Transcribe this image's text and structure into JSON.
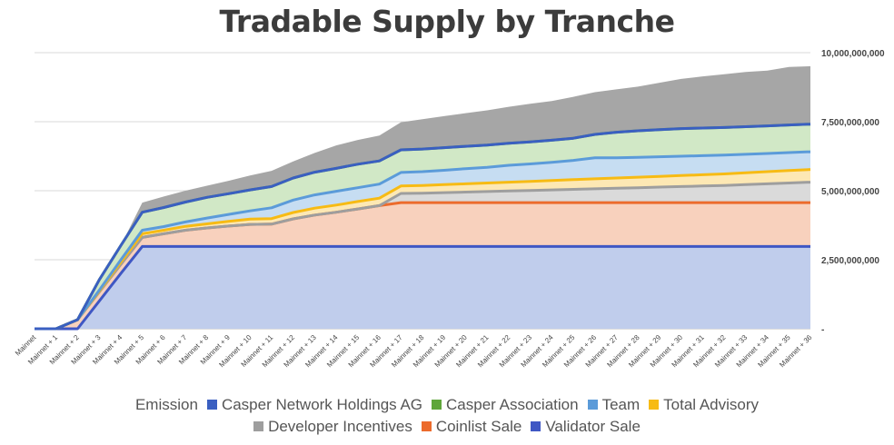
{
  "chart_data": {
    "type": "area",
    "stacked": true,
    "title": "Tradable Supply by Tranche",
    "xlabel": "",
    "ylabel": "",
    "ylim": [
      0,
      10000000000
    ],
    "y_ticks": [
      "-",
      "2,500,000,000",
      "5,000,000,000",
      "7,500,000,000",
      "10,000,000,000"
    ],
    "y_axis_position": "right",
    "grid": true,
    "legend_position": "bottom",
    "legend_title": "Emission",
    "categories": [
      "Mainnet",
      "Mainnet + 1",
      "Mainnet + 2",
      "Mainnet + 3",
      "Mainnet + 4",
      "Mainnet + 5",
      "Mainnet + 6",
      "Mainnet + 7",
      "Mainnet + 8",
      "Mainnet + 9",
      "Mainnet + 10",
      "Mainnet + 11",
      "Mainnet + 12",
      "Mainnet + 13",
      "Mainnet + 14",
      "Mainnet + 15",
      "Mainnet + 16",
      "Mainnet + 17",
      "Mainnet + 18",
      "Mainnet + 19",
      "Mainnet + 20",
      "Mainnet + 21",
      "Mainnet + 22",
      "Mainnet + 23",
      "Mainnet + 24",
      "Mainnet + 25",
      "Mainnet + 26",
      "Mainnet + 27",
      "Mainnet + 28",
      "Mainnet + 29",
      "Mainnet + 30",
      "Mainnet + 31",
      "Mainnet + 32",
      "Mainnet + 33",
      "Mainnet + 34",
      "Mainnet + 35",
      "Mainnet + 36"
    ],
    "series": [
      {
        "name": "Validator Sale",
        "color": "#3f57c4",
        "fill": "#c0cdec",
        "values": [
          0,
          0,
          0,
          1000000000,
          2000000000,
          2980000000,
          2980000000,
          2980000000,
          2980000000,
          2980000000,
          2980000000,
          2980000000,
          2980000000,
          2980000000,
          2980000000,
          2980000000,
          2980000000,
          2980000000,
          2980000000,
          2980000000,
          2980000000,
          2980000000,
          2980000000,
          2980000000,
          2980000000,
          2980000000,
          2980000000,
          2980000000,
          2980000000,
          2980000000,
          2980000000,
          2980000000,
          2980000000,
          2980000000,
          2980000000,
          2980000000,
          2980000000
        ]
      },
      {
        "name": "Coinlist Sale",
        "color": "#ec6b2c",
        "fill": "#f8d1bd",
        "values": [
          0,
          0,
          330000000,
          330000000,
          330000000,
          330000000,
          460000000,
          590000000,
          670000000,
          740000000,
          800000000,
          810000000,
          1000000000,
          1140000000,
          1240000000,
          1360000000,
          1480000000,
          1590000000,
          1590000000,
          1590000000,
          1590000000,
          1590000000,
          1590000000,
          1590000000,
          1590000000,
          1590000000,
          1590000000,
          1590000000,
          1590000000,
          1590000000,
          1590000000,
          1590000000,
          1590000000,
          1590000000,
          1590000000,
          1590000000,
          1590000000
        ]
      },
      {
        "name": "Developer Incentives",
        "color": "#9e9e9e",
        "fill": "#dadada",
        "values": [
          0,
          0,
          0,
          0,
          0,
          0,
          0,
          0,
          0,
          0,
          0,
          0,
          0,
          0,
          0,
          0,
          0,
          330000000,
          340000000,
          360000000,
          380000000,
          400000000,
          420000000,
          440000000,
          460000000,
          480000000,
          500000000,
          520000000,
          540000000,
          560000000,
          580000000,
          600000000,
          620000000,
          650000000,
          680000000,
          710000000,
          740000000
        ]
      },
      {
        "name": "Total Advisory",
        "color": "#f7bb14",
        "fill": "#fde8b4",
        "values": [
          0,
          0,
          0,
          30000000,
          80000000,
          130000000,
          130000000,
          140000000,
          150000000,
          170000000,
          190000000,
          200000000,
          230000000,
          250000000,
          260000000,
          270000000,
          270000000,
          270000000,
          280000000,
          290000000,
          300000000,
          310000000,
          320000000,
          330000000,
          340000000,
          350000000,
          360000000,
          370000000,
          380000000,
          390000000,
          400000000,
          410000000,
          420000000,
          430000000,
          440000000,
          450000000,
          460000000
        ]
      },
      {
        "name": "Team",
        "color": "#5b9bd9",
        "fill": "#c6ddf2",
        "values": [
          0,
          0,
          0,
          30000000,
          80000000,
          130000000,
          130000000,
          160000000,
          210000000,
          250000000,
          300000000,
          390000000,
          450000000,
          480000000,
          500000000,
          500000000,
          510000000,
          490000000,
          500000000,
          520000000,
          550000000,
          570000000,
          610000000,
          630000000,
          660000000,
          700000000,
          760000000,
          730000000,
          720000000,
          710000000,
          700000000,
          690000000,
          680000000,
          670000000,
          660000000,
          650000000,
          640000000
        ]
      },
      {
        "name": "Casper Association",
        "color": "#5fa63a",
        "fill": "#d1e8c6",
        "values": [
          0,
          0,
          0,
          380000000,
          520000000,
          650000000,
          690000000,
          720000000,
          750000000,
          750000000,
          760000000,
          770000000,
          800000000,
          820000000,
          830000000,
          850000000,
          840000000,
          820000000,
          820000000,
          820000000,
          810000000,
          800000000,
          800000000,
          800000000,
          800000000,
          800000000,
          850000000,
          930000000,
          960000000,
          980000000,
          1000000000,
          1000000000,
          1000000000,
          1000000000,
          1000000000,
          1000000000,
          1000000000
        ]
      },
      {
        "name": "Casper Network Holdings AG",
        "color": "#3a5fc1",
        "fill": "#3a5fc1",
        "values": [
          0,
          0,
          0,
          0,
          0,
          0,
          0,
          0,
          0,
          0,
          0,
          0,
          0,
          0,
          0,
          0,
          0,
          0,
          0,
          0,
          0,
          0,
          0,
          0,
          0,
          0,
          0,
          0,
          0,
          0,
          0,
          0,
          0,
          0,
          0,
          0,
          0
        ]
      },
      {
        "name": "Emission",
        "color": "#a6a6a6",
        "fill": "#a6a6a6",
        "values": [
          0,
          0,
          0,
          0,
          0,
          350000000,
          400000000,
          410000000,
          420000000,
          470000000,
          520000000,
          570000000,
          600000000,
          700000000,
          830000000,
          880000000,
          920000000,
          1000000000,
          1080000000,
          1140000000,
          1200000000,
          1260000000,
          1320000000,
          1380000000,
          1420000000,
          1500000000,
          1530000000,
          1550000000,
          1600000000,
          1700000000,
          1800000000,
          1870000000,
          1930000000,
          1980000000,
          2000000000,
          2100000000,
          2100000000
        ]
      }
    ]
  },
  "legend": {
    "row1": [
      {
        "label": "Emission",
        "color": "",
        "swatch": false
      },
      {
        "label": "Casper Network Holdings AG",
        "color": "#3a5fc1",
        "swatch": true
      },
      {
        "label": "Casper Association",
        "color": "#5fa63a",
        "swatch": true
      },
      {
        "label": "Team",
        "color": "#5b9bd9",
        "swatch": true
      },
      {
        "label": "Total Advisory",
        "color": "#f7bb14",
        "swatch": true
      }
    ],
    "row2": [
      {
        "label": "Developer Incentives",
        "color": "#9e9e9e",
        "swatch": true
      },
      {
        "label": "Coinlist Sale",
        "color": "#ec6b2c",
        "swatch": true
      },
      {
        "label": "Validator Sale",
        "color": "#3f57c4",
        "swatch": true
      }
    ]
  }
}
